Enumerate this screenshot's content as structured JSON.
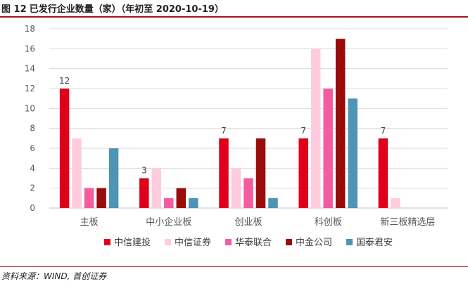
{
  "figure": {
    "number": "图 12",
    "title": "已发行企业数量（家）（年初至 2020-10-19）"
  },
  "source": "资料来源：WIND, 首创证券",
  "colors": {
    "rule": "#a0141e",
    "grid": "#d9d9d9",
    "axis": "#bfbfbf"
  },
  "chart_data": {
    "type": "bar",
    "title": "已发行企业数量（家）（年初至 2020-10-19）",
    "xlabel": "",
    "ylabel": "",
    "ylim": [
      0,
      18
    ],
    "yticks": [
      0,
      2,
      4,
      6,
      8,
      10,
      12,
      14,
      16,
      18
    ],
    "grid": true,
    "legend_position": "bottom",
    "categories": [
      "主板",
      "中小企业板",
      "创业板",
      "科创板",
      "新三板精选层"
    ],
    "series": [
      {
        "name": "中信建投",
        "color": "#e0001b",
        "values": [
          12,
          3,
          7,
          7,
          7
        ]
      },
      {
        "name": "中信证券",
        "color": "#ffccdd",
        "values": [
          7,
          4,
          4,
          16,
          1
        ]
      },
      {
        "name": "华泰联合",
        "color": "#f45ca0",
        "values": [
          2,
          1,
          3,
          12,
          0
        ]
      },
      {
        "name": "中金公司",
        "color": "#9a0b0b",
        "values": [
          2,
          2,
          7,
          17,
          0
        ]
      },
      {
        "name": "国泰君安",
        "color": "#4e94b4",
        "values": [
          6,
          1,
          1,
          11,
          0
        ]
      }
    ],
    "data_labels": [
      {
        "series": 0,
        "category": 0,
        "text": "12"
      },
      {
        "series": 0,
        "category": 1,
        "text": "3"
      },
      {
        "series": 0,
        "category": 2,
        "text": "7"
      },
      {
        "series": 0,
        "category": 3,
        "text": "7"
      },
      {
        "series": 0,
        "category": 4,
        "text": "7"
      }
    ]
  }
}
